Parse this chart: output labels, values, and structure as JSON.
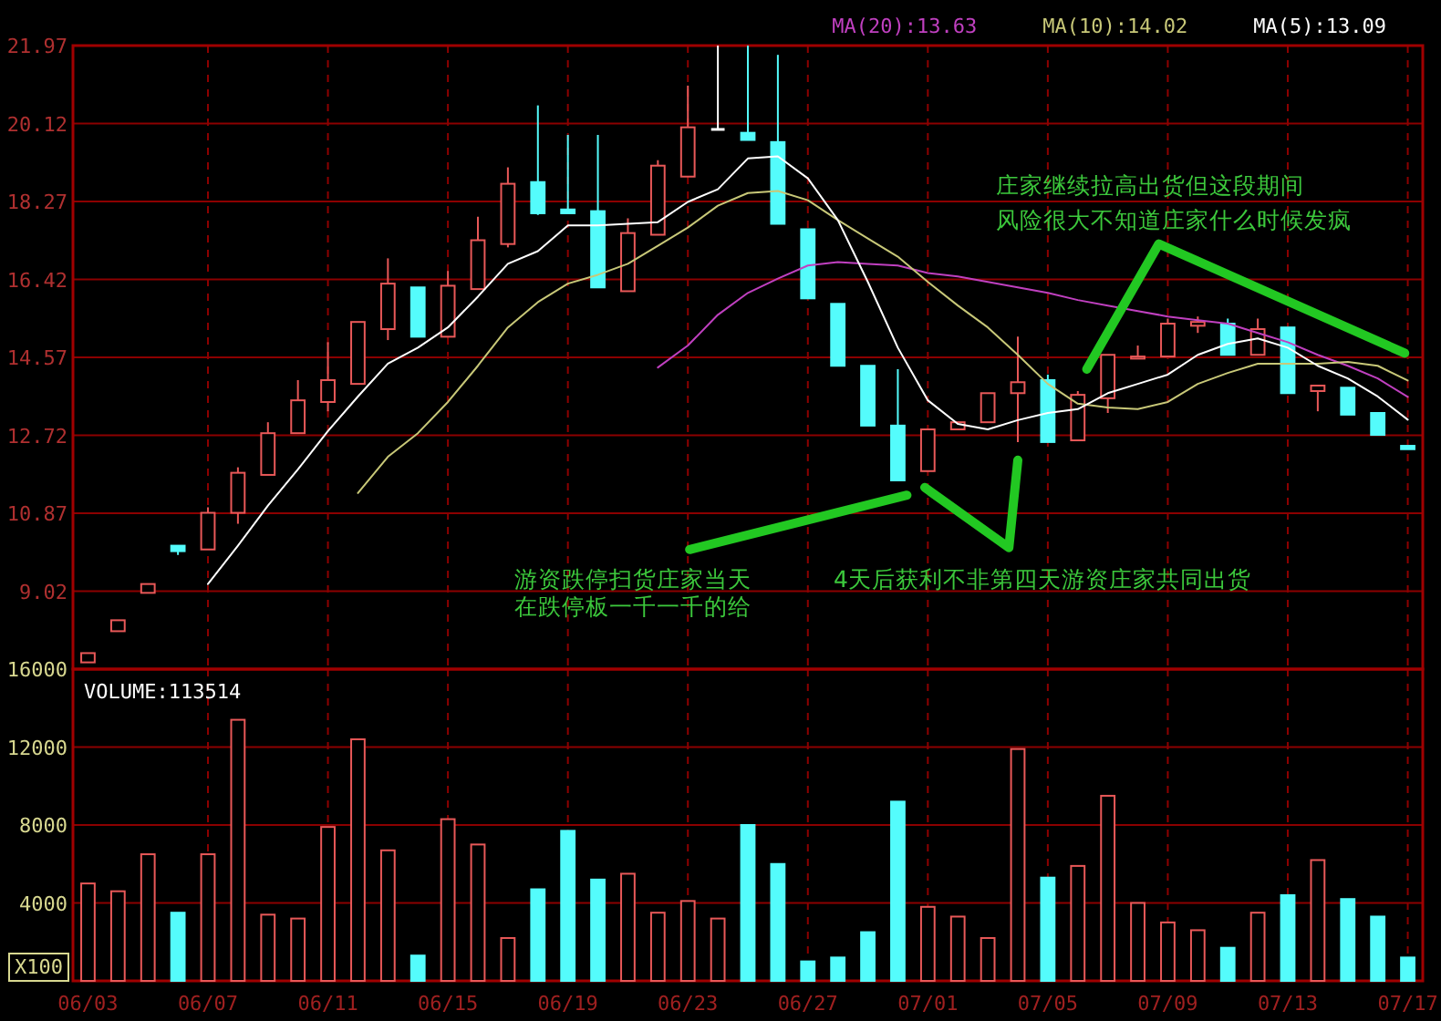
{
  "chart_data": [
    {
      "type": "candlestick",
      "ohlc": [
        [
          7.33,
          7.55,
          7.33,
          7.55
        ],
        [
          8.07,
          8.33,
          8.07,
          8.33
        ],
        [
          8.98,
          9.19,
          8.98,
          9.19
        ],
        [
          10.1,
          10.1,
          9.88,
          9.97
        ],
        [
          10.01,
          11.01,
          10.01,
          10.88
        ],
        [
          10.88,
          11.96,
          10.62,
          11.83
        ],
        [
          11.78,
          13.03,
          11.78,
          12.77
        ],
        [
          12.77,
          14.03,
          12.77,
          13.55
        ],
        [
          13.51,
          14.93,
          13.29,
          14.03
        ],
        [
          13.94,
          15.41,
          13.94,
          15.41
        ],
        [
          15.24,
          16.92,
          14.98,
          16.32
        ],
        [
          16.23,
          16.23,
          15.06,
          15.06
        ],
        [
          15.06,
          16.62,
          15.06,
          16.27
        ],
        [
          16.19,
          17.91,
          16.19,
          17.35
        ],
        [
          17.26,
          19.08,
          17.18,
          18.69
        ],
        [
          18.73,
          20.55,
          17.95,
          17.99
        ],
        [
          18.08,
          19.85,
          17.99,
          17.99
        ],
        [
          18.04,
          19.85,
          16.23,
          16.23
        ],
        [
          16.14,
          17.87,
          16.14,
          17.52
        ],
        [
          17.48,
          19.25,
          17.48,
          19.12
        ],
        [
          18.86,
          21.02,
          18.86,
          20.03
        ],
        [
          19.98,
          21.97,
          19.98,
          19.98
        ],
        [
          19.9,
          21.97,
          19.73,
          19.73
        ],
        [
          19.68,
          21.75,
          17.74,
          17.74
        ],
        [
          17.61,
          17.61,
          15.97,
          15.97
        ],
        [
          15.84,
          15.84,
          14.37,
          14.37
        ],
        [
          14.37,
          14.37,
          12.95,
          12.95
        ],
        [
          12.95,
          14.29,
          11.65,
          11.65
        ],
        [
          11.87,
          12.86,
          11.87,
          12.86
        ],
        [
          12.86,
          13.03,
          12.86,
          13.03
        ],
        [
          13.03,
          13.72,
          13.03,
          13.72
        ],
        [
          13.72,
          15.06,
          12.56,
          13.98
        ],
        [
          14.03,
          14.16,
          12.56,
          12.56
        ],
        [
          12.6,
          13.77,
          12.6,
          13.68
        ],
        [
          13.6,
          14.63,
          13.25,
          14.63
        ],
        [
          14.54,
          14.85,
          14.54,
          14.59
        ],
        [
          14.59,
          15.49,
          14.59,
          15.37
        ],
        [
          15.32,
          15.54,
          15.15,
          15.41
        ],
        [
          15.37,
          15.49,
          14.63,
          14.63
        ],
        [
          14.63,
          15.49,
          14.63,
          15.24
        ],
        [
          15.28,
          15.28,
          13.72,
          13.72
        ],
        [
          13.77,
          13.9,
          13.29,
          13.9
        ],
        [
          13.85,
          13.85,
          13.21,
          13.21
        ],
        [
          13.25,
          13.25,
          12.73,
          12.73
        ],
        [
          12.47,
          12.47,
          12.39,
          12.39
        ]
      ],
      "colors": [
        "#e85858",
        "#e85858",
        "#e85858",
        "#54fcfc",
        "#e85858",
        "#e85858",
        "#e85858",
        "#e85858",
        "#e85858",
        "#e85858",
        "#e85858",
        "#54fcfc",
        "#e85858",
        "#e85858",
        "#e85858",
        "#54fcfc",
        "#54fcfc",
        "#54fcfc",
        "#e85858",
        "#e85858",
        "#e85858",
        "#ffffff",
        "#54fcfc",
        "#54fcfc",
        "#54fcfc",
        "#54fcfc",
        "#54fcfc",
        "#54fcfc",
        "#e85858",
        "#e85858",
        "#e85858",
        "#e85858",
        "#54fcfc",
        "#e85858",
        "#e85858",
        "#e85858",
        "#e85858",
        "#e85858",
        "#54fcfc",
        "#e85858",
        "#54fcfc",
        "#e85858",
        "#54fcfc",
        "#54fcfc",
        "#54fcfc"
      ],
      "series": [
        {
          "type": "line",
          "name": "MA(20):13.63",
          "color": "#c040c0",
          "values": [
            null,
            null,
            null,
            null,
            null,
            null,
            null,
            null,
            null,
            null,
            null,
            null,
            null,
            null,
            null,
            null,
            null,
            null,
            null,
            14.33,
            14.85,
            15.58,
            16.1,
            16.44,
            16.75,
            16.83,
            16.79,
            16.75,
            16.57,
            16.49,
            16.36,
            16.23,
            16.1,
            15.93,
            15.8,
            15.67,
            15.54,
            15.45,
            15.37,
            15.15,
            14.93,
            14.63,
            14.37,
            14.07,
            13.63
          ]
        },
        {
          "type": "line",
          "name": "MA(10):14.02",
          "color": "#c8c878",
          "values": [
            null,
            null,
            null,
            null,
            null,
            null,
            null,
            null,
            null,
            11.35,
            12.21,
            12.77,
            13.51,
            14.37,
            15.28,
            15.88,
            16.32,
            16.53,
            16.79,
            17.22,
            17.65,
            18.17,
            18.47,
            18.52,
            18.3,
            17.83,
            17.39,
            16.96,
            16.36,
            15.8,
            15.28,
            14.63,
            13.94,
            13.47,
            13.38,
            13.34,
            13.51,
            13.94,
            14.2,
            14.42,
            14.42,
            14.42,
            14.46,
            14.37,
            14.02
          ]
        },
        {
          "type": "line",
          "name": "MA(5):13.09",
          "color": "#ffffff",
          "values": [
            null,
            null,
            null,
            null,
            9.19,
            10.1,
            11.05,
            11.91,
            12.82,
            13.64,
            14.42,
            14.8,
            15.28,
            16.01,
            16.79,
            17.09,
            17.7,
            17.7,
            17.74,
            17.78,
            18.26,
            18.56,
            19.29,
            19.34,
            18.82,
            17.83,
            16.36,
            14.8,
            13.55,
            12.99,
            12.86,
            13.08,
            13.25,
            13.34,
            13.72,
            13.94,
            14.16,
            14.63,
            14.89,
            15.02,
            14.8,
            14.37,
            14.07,
            13.64,
            13.09
          ]
        }
      ],
      "ylim": [
        7.17,
        21.97
      ],
      "yticks": [
        9.02,
        10.87,
        12.72,
        14.57,
        16.42,
        18.27,
        20.12,
        21.97
      ],
      "grid": true,
      "legend": "top right",
      "tick_labels": "y",
      "annotations": [
        "游资跌停扫货庄家当天",
        "在跌停板一千一千的给",
        "4天后获利不非第四天游资庄家共同出货",
        "庄家继续拉高出货但这段期间",
        "风险很大不知道庄家什么时候发疯"
      ]
    },
    {
      "type": "bar",
      "categories": [
        "06/03",
        null,
        null,
        null,
        "06/07",
        null,
        null,
        null,
        "06/11",
        null,
        null,
        null,
        "06/15",
        null,
        null,
        null,
        "06/19",
        null,
        null,
        null,
        "06/23",
        null,
        null,
        null,
        "06/27",
        null,
        null,
        null,
        "07/01",
        null,
        null,
        null,
        "07/05",
        null,
        null,
        null,
        "07/09",
        null,
        null,
        null,
        "07/13",
        null,
        null,
        null,
        "07/17"
      ],
      "values": [
        5000,
        4600,
        6500,
        3500,
        6500,
        13400,
        3400,
        3200,
        7900,
        12400,
        6700,
        1300,
        8300,
        7000,
        2200,
        4700,
        7700,
        5200,
        5500,
        3500,
        4100,
        3200,
        8000,
        6000,
        1000,
        1200,
        2500,
        9200,
        3800,
        3300,
        2200,
        11900,
        5300,
        5900,
        9500,
        4000,
        3000,
        2600,
        1700,
        3500,
        4400,
        6200,
        4200,
        3300,
        1200
      ],
      "colors": [
        "#e85858",
        "#e85858",
        "#e85858",
        "#54fcfc",
        "#e85858",
        "#e85858",
        "#e85858",
        "#e85858",
        "#e85858",
        "#e85858",
        "#e85858",
        "#54fcfc",
        "#e85858",
        "#e85858",
        "#e85858",
        "#54fcfc",
        "#54fcfc",
        "#54fcfc",
        "#e85858",
        "#e85858",
        "#e85858",
        "#e85858",
        "#54fcfc",
        "#54fcfc",
        "#54fcfc",
        "#54fcfc",
        "#54fcfc",
        "#54fcfc",
        "#e85858",
        "#e85858",
        "#e85858",
        "#e85858",
        "#54fcfc",
        "#e85858",
        "#e85858",
        "#e85858",
        "#e85858",
        "#e85858",
        "#54fcfc",
        "#e85858",
        "#54fcfc",
        "#e85858",
        "#54fcfc",
        "#54fcfc",
        "#54fcfc"
      ],
      "ylim": [
        0,
        16000
      ],
      "yticks": [
        4000,
        8000,
        12000,
        16000
      ],
      "grid": true,
      "annotations": [
        "VOLUME:113514",
        "X100"
      ]
    }
  ]
}
